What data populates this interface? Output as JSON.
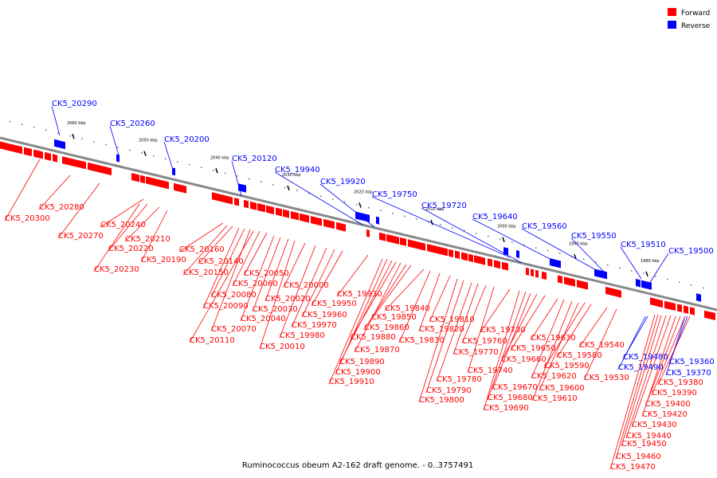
{
  "caption": "Ruminococcus obeum A2-162 draft genome. - 0..3757491",
  "legend": [
    {
      "label": "Forward",
      "color": "#ff0000"
    },
    {
      "label": "Reverse",
      "color": "#0000ff"
    }
  ],
  "colors": {
    "forward": "#ff0000",
    "reverse": "#0000ff",
    "backbone": "#888888"
  },
  "ticks": [
    "2060 kbp",
    "2050 kbp",
    "2040 kbp",
    "2030 kbp",
    "2020 kbp",
    "2010 kbp",
    "2000 kbp",
    "1990 kbp",
    "1980 kbp"
  ],
  "reverse_genes": [
    "CK5_20290",
    "CK5_20260",
    "CK5_20200",
    "CK5_20120",
    "CK5_19940",
    "CK5_19920",
    "CK5_19750",
    "CK5_19720",
    "CK5_19640",
    "CK5_19560",
    "CK5_19550",
    "CK5_19510",
    "CK5_19500",
    "CK5_19490",
    "CK5_19480",
    "CK5_19370",
    "CK5_19360"
  ],
  "forward_genes": [
    "CK5_20300",
    "CK5_20280",
    "CK5_20270",
    "CK5_20240",
    "CK5_20230",
    "CK5_20220",
    "CK5_20210",
    "CK5_20190",
    "CK5_20160",
    "CK5_20150",
    "CK5_20140",
    "CK5_20110",
    "CK5_20090",
    "CK5_20080",
    "CK5_20070",
    "CK5_20060",
    "CK5_20050",
    "CK5_20040",
    "CK5_20030",
    "CK5_20020",
    "CK5_20010",
    "CK5_20000",
    "CK5_19980",
    "CK5_19970",
    "CK5_19960",
    "CK5_19950",
    "CK5_19930",
    "CK5_19910",
    "CK5_19900",
    "CK5_19890",
    "CK5_19880",
    "CK5_19870",
    "CK5_19860",
    "CK5_19850",
    "CK5_19840",
    "CK5_19830",
    "CK5_19820",
    "CK5_19810",
    "CK5_19800",
    "CK5_19790",
    "CK5_19780",
    "CK5_19770",
    "CK5_19760",
    "CK5_19740",
    "CK5_19730",
    "CK5_19690",
    "CK5_19680",
    "CK5_19670",
    "CK5_19660",
    "CK5_19650",
    "CK5_19630",
    "CK5_19620",
    "CK5_19610",
    "CK5_19600",
    "CK5_19590",
    "CK5_19580",
    "CK5_19540",
    "CK5_19530",
    "CK5_19470",
    "CK5_19460",
    "CK5_19450",
    "CK5_19440",
    "CK5_19430",
    "CK5_19420",
    "CK5_19400",
    "CK5_19390",
    "CK5_19380"
  ]
}
